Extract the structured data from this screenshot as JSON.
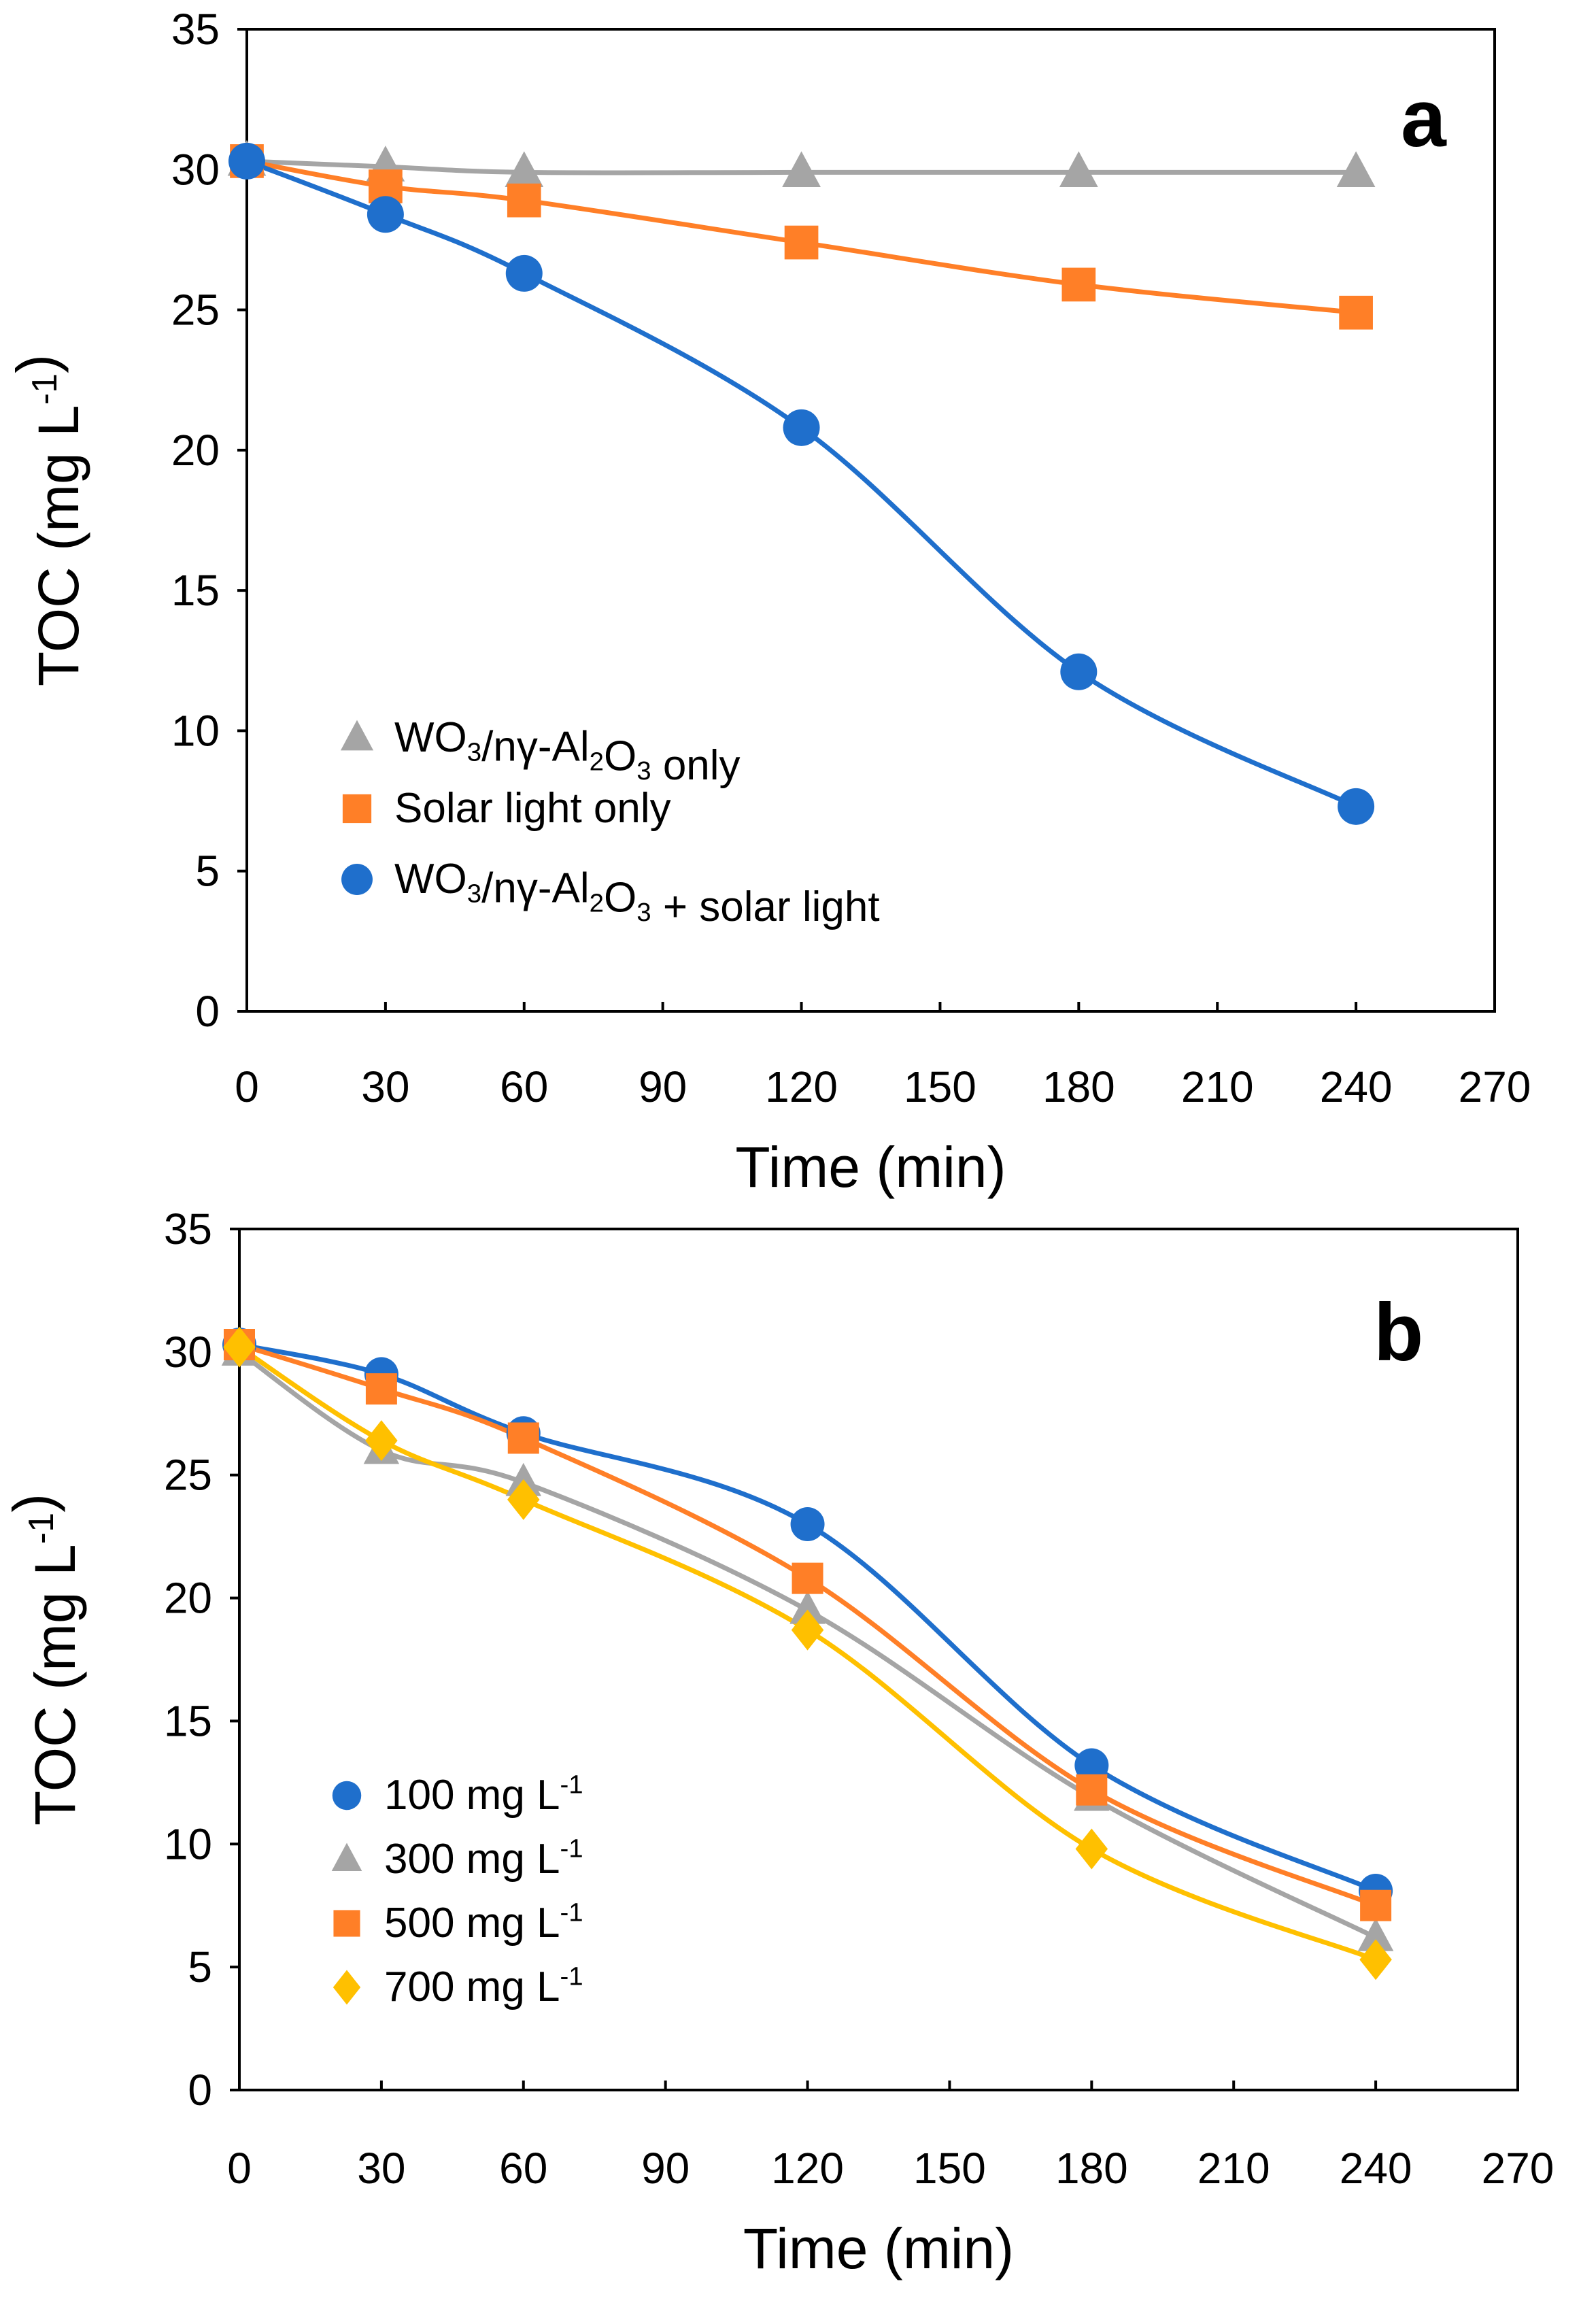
{
  "chart_data": [
    {
      "type": "line",
      "panel_label": "a",
      "xlabel": "Time (min)",
      "ylabel": "TOC (mg L-1)",
      "ylabel_parts": [
        {
          "t": "TOC (mg L"
        },
        {
          "t": "-1",
          "sup": true
        },
        {
          "t": ")"
        }
      ],
      "xlim": [
        0,
        270
      ],
      "ylim": [
        0,
        35
      ],
      "xticks": [
        0,
        30,
        60,
        90,
        120,
        150,
        180,
        210,
        240,
        270
      ],
      "yticks": [
        0,
        5,
        10,
        15,
        20,
        25,
        30,
        35
      ],
      "grid": false,
      "legend_position": "bottom-left",
      "x": [
        0,
        30,
        60,
        120,
        180,
        240
      ],
      "series": [
        {
          "name": "WO3/nγ-Al2O3 only",
          "parts": [
            {
              "t": "WO"
            },
            {
              "t": "3",
              "sub": true
            },
            {
              "t": "/nγ-Al"
            },
            {
              "t": "2",
              "sub": true
            },
            {
              "t": "O"
            },
            {
              "t": "3",
              "sub": true
            },
            {
              "t": " only"
            }
          ],
          "marker": "triangle",
          "color": "#A5A5A5",
          "values": [
            30.3,
            30.1,
            29.9,
            29.9,
            29.9,
            29.9
          ]
        },
        {
          "name": "Solar light only",
          "parts": [
            {
              "t": "Solar light only"
            }
          ],
          "marker": "square",
          "color": "#FF7F27",
          "values": [
            30.3,
            29.4,
            28.9,
            27.4,
            25.9,
            24.9
          ]
        },
        {
          "name": "WO3/nγ-Al2O3 + solar light",
          "parts": [
            {
              "t": "WO"
            },
            {
              "t": "3",
              "sub": true
            },
            {
              "t": "/nγ-Al"
            },
            {
              "t": "2",
              "sub": true
            },
            {
              "t": "O"
            },
            {
              "t": "3",
              "sub": true
            },
            {
              "t": "  + solar light"
            }
          ],
          "marker": "circle",
          "color": "#1F6FCC",
          "values": [
            30.3,
            28.4,
            26.3,
            20.8,
            12.1,
            7.3
          ]
        }
      ]
    },
    {
      "type": "line",
      "panel_label": "b",
      "xlabel": "Time (min)",
      "ylabel": "TOC (mg L-1)",
      "ylabel_parts": [
        {
          "t": "TOC (mg L"
        },
        {
          "t": "-1",
          "sup": true
        },
        {
          "t": ")"
        }
      ],
      "xlim": [
        0,
        270
      ],
      "ylim": [
        0,
        35
      ],
      "xticks": [
        0,
        30,
        60,
        90,
        120,
        150,
        180,
        210,
        240,
        270
      ],
      "yticks": [
        0,
        5,
        10,
        15,
        20,
        25,
        30,
        35
      ],
      "grid": false,
      "legend_position": "bottom-left",
      "x": [
        0,
        30,
        60,
        120,
        180,
        240
      ],
      "series": [
        {
          "name": "100 mg L-1",
          "parts": [
            {
              "t": "100 mg L"
            },
            {
              "t": "-1",
              "sup": true
            }
          ],
          "marker": "circle",
          "color": "#1F6FCC",
          "values": [
            30.3,
            29.1,
            26.7,
            23.0,
            13.2,
            8.1
          ]
        },
        {
          "name": "300 mg L-1",
          "parts": [
            {
              "t": "300 mg L"
            },
            {
              "t": "-1",
              "sup": true
            }
          ],
          "marker": "triangle",
          "color": "#A5A5A5",
          "values": [
            30.0,
            26.0,
            24.7,
            19.5,
            11.9,
            6.2
          ]
        },
        {
          "name": "500 mg L-1",
          "parts": [
            {
              "t": "500 mg L"
            },
            {
              "t": "-1",
              "sup": true
            }
          ],
          "marker": "square",
          "color": "#FF7F27",
          "values": [
            30.3,
            28.5,
            26.5,
            20.8,
            12.2,
            7.5
          ]
        },
        {
          "name": "700 mg L-1",
          "parts": [
            {
              "t": "700 mg L"
            },
            {
              "t": "-1",
              "sup": true
            }
          ],
          "marker": "diamond",
          "color": "#FFC000",
          "values": [
            30.2,
            26.4,
            24.0,
            18.7,
            9.8,
            5.3
          ]
        }
      ]
    }
  ]
}
